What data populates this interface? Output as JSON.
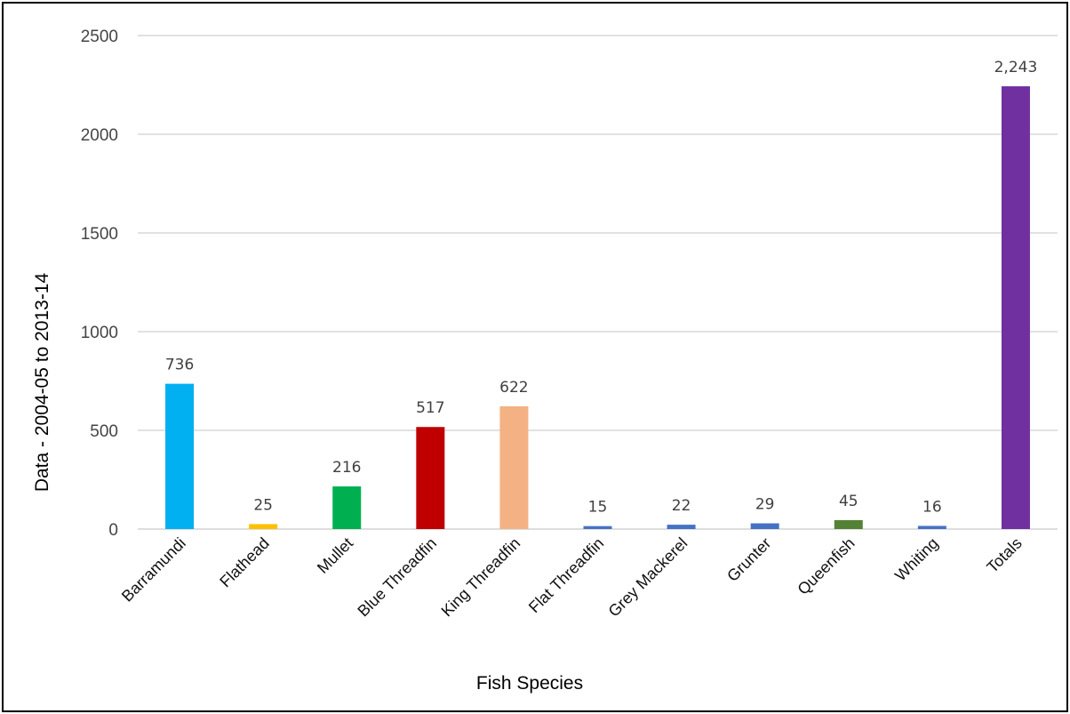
{
  "chart_data": {
    "type": "bar",
    "title": "",
    "xlabel": "Fish Species",
    "ylabel": "Data - 2004-05 to 2013-14",
    "ylim": [
      0,
      2500
    ],
    "yticks": [
      0,
      500,
      1000,
      1500,
      2000,
      2500
    ],
    "grid": true,
    "legend": "none",
    "categories": [
      "Barramundi",
      "Flathead",
      "Mullet",
      "Blue Threadfin",
      "King Threadfin",
      "Flat Threadfin",
      "Grey Mackerel",
      "Grunter",
      "Queenfish",
      "Whiting",
      "Totals"
    ],
    "values": [
      736,
      25,
      216,
      517,
      622,
      15,
      22,
      29,
      45,
      16,
      2243
    ],
    "data_labels": [
      "736",
      "25",
      "216",
      "517",
      "622",
      "15",
      "22",
      "29",
      "45",
      "16",
      "2,243"
    ],
    "colors": [
      "#00b0f0",
      "#ffc000",
      "#00b050",
      "#c00000",
      "#f4b183",
      "#4472c4",
      "#4472c4",
      "#4472c4",
      "#548235",
      "#4472c4",
      "#7030a0"
    ]
  }
}
